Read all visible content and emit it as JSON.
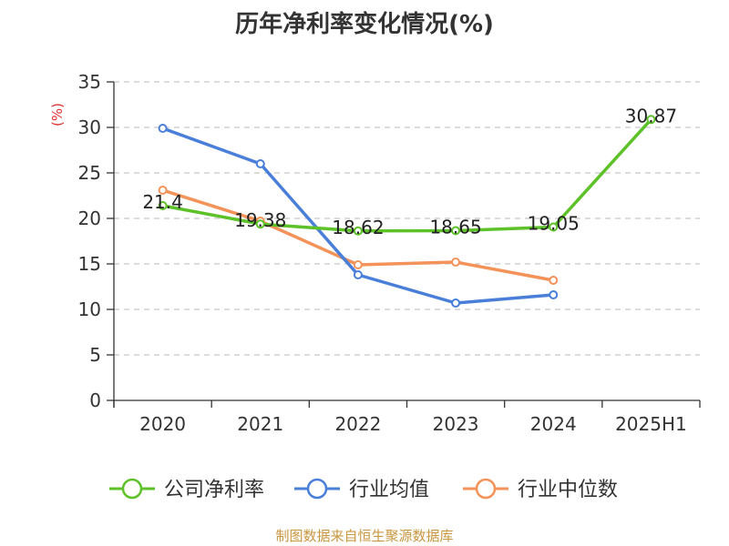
{
  "chart_data": {
    "type": "line",
    "title": "历年净利率变化情况(%)",
    "ylabel": "(%)",
    "xlabel": "",
    "categories": [
      "2020",
      "2021",
      "2022",
      "2023",
      "2024",
      "2025H1"
    ],
    "ylim": [
      0,
      35
    ],
    "yticks": [
      0,
      5,
      10,
      15,
      20,
      25,
      30,
      35
    ],
    "grid": true,
    "legend_position": "bottom",
    "series": [
      {
        "name": "公司净利率",
        "color": "#5dc129",
        "values": [
          21.4,
          19.38,
          18.62,
          18.65,
          19.05,
          30.87
        ],
        "labels": [
          "21.4",
          "19.38",
          "18.62",
          "18.65",
          "19.05",
          "30.87"
        ]
      },
      {
        "name": "行业均值",
        "color": "#4a7fd9",
        "values": [
          29.9,
          26.0,
          13.8,
          10.7,
          11.6,
          null
        ]
      },
      {
        "name": "行业中位数",
        "color": "#f39259",
        "values": [
          23.1,
          19.7,
          14.9,
          15.2,
          13.2,
          null
        ]
      }
    ]
  },
  "source": "制图数据来自恒生聚源数据库"
}
